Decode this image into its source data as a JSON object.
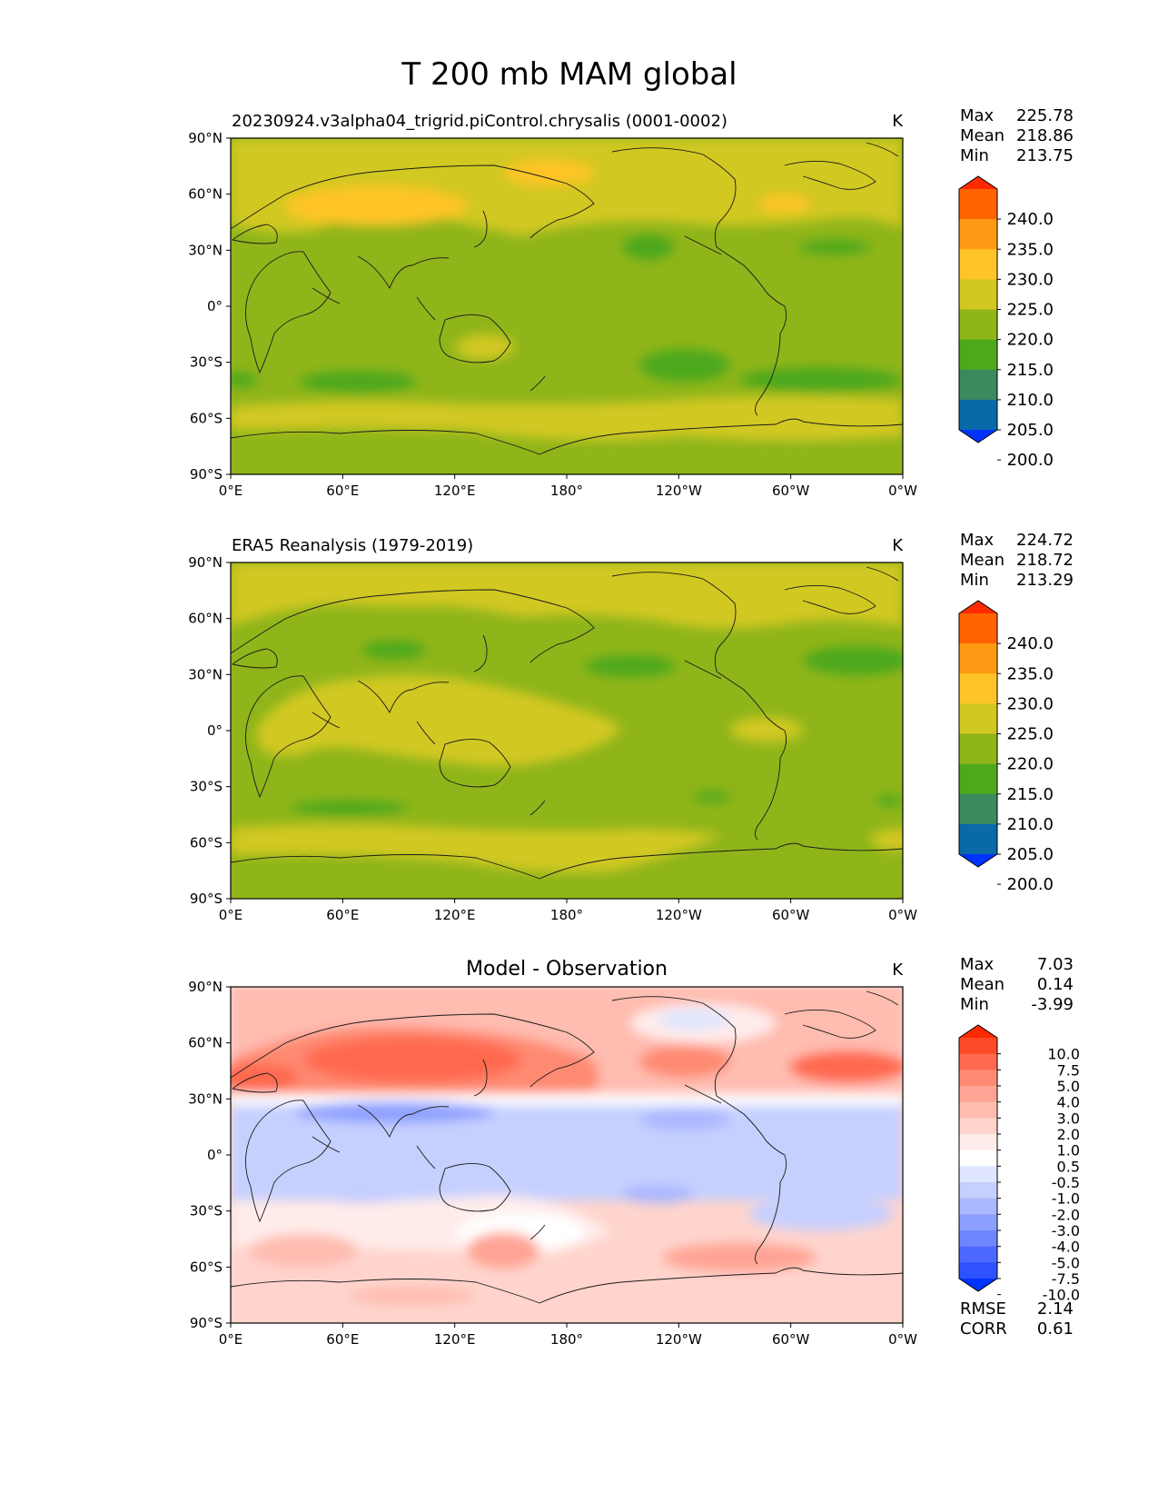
{
  "title": "T 200 mb MAM global",
  "x_ticks": [
    "0°E",
    "60°E",
    "120°E",
    "180°",
    "120°W",
    "60°W",
    "0°W"
  ],
  "y_ticks": [
    "90°N",
    "60°N",
    "30°N",
    "0°",
    "30°S",
    "60°S",
    "90°S"
  ],
  "panels": [
    {
      "left_title": "20230924.v3alpha04_trigrid.piControl.chrysalis (0001-0002)",
      "center_title": "",
      "units": "K",
      "stats": [
        {
          "label": "Max",
          "value": "225.78"
        },
        {
          "label": "Mean",
          "value": "218.86"
        },
        {
          "label": "Min",
          "value": "213.75"
        }
      ],
      "colorbar": {
        "labels": [
          "240.0",
          "235.0",
          "230.0",
          "225.0",
          "220.0",
          "215.0",
          "210.0",
          "205.0",
          "200.0"
        ],
        "colors": [
          "#ff2a00",
          "#ff6400",
          "#ff9a14",
          "#ffc428",
          "#d2c822",
          "#8fb51a",
          "#4ea81a",
          "#3a8a5e",
          "#0a6aa8",
          "#0033ff"
        ]
      },
      "footer": []
    },
    {
      "left_title": "ERA5 Reanalysis (1979-2019)",
      "center_title": "",
      "units": "K",
      "stats": [
        {
          "label": "Max",
          "value": "224.72"
        },
        {
          "label": "Mean",
          "value": "218.72"
        },
        {
          "label": "Min",
          "value": "213.29"
        }
      ],
      "colorbar": {
        "labels": [
          "240.0",
          "235.0",
          "230.0",
          "225.0",
          "220.0",
          "215.0",
          "210.0",
          "205.0",
          "200.0"
        ],
        "colors": [
          "#ff2a00",
          "#ff6400",
          "#ff9a14",
          "#ffc428",
          "#d2c822",
          "#8fb51a",
          "#4ea81a",
          "#3a8a5e",
          "#0a6aa8",
          "#0033ff"
        ]
      },
      "footer": []
    },
    {
      "left_title": "",
      "center_title": "Model - Observation",
      "units": "K",
      "stats": [
        {
          "label": "Max",
          "value": "7.03"
        },
        {
          "label": "Mean",
          "value": "0.14"
        },
        {
          "label": "Min",
          "value": "-3.99"
        }
      ],
      "colorbar": {
        "labels": [
          "10.0",
          "7.5",
          "5.0",
          "4.0",
          "3.0",
          "2.0",
          "1.0",
          "0.5",
          "-0.5",
          "-1.0",
          "-2.0",
          "-3.0",
          "-4.0",
          "-5.0",
          "-7.5",
          "-10.0"
        ],
        "colors": [
          "#ff2a00",
          "#ff4a2a",
          "#ff6a50",
          "#ff8a72",
          "#ffa494",
          "#ffbcb0",
          "#ffd4cc",
          "#ffecea",
          "#ffffff",
          "#e0e6ff",
          "#c6d0ff",
          "#aab8ff",
          "#8ea0ff",
          "#6e86ff",
          "#4c6aff",
          "#2e52ff",
          "#0033ff"
        ]
      },
      "footer": [
        {
          "label": "RMSE",
          "value": "2.14"
        },
        {
          "label": "CORR",
          "value": "0.61"
        }
      ]
    }
  ]
}
